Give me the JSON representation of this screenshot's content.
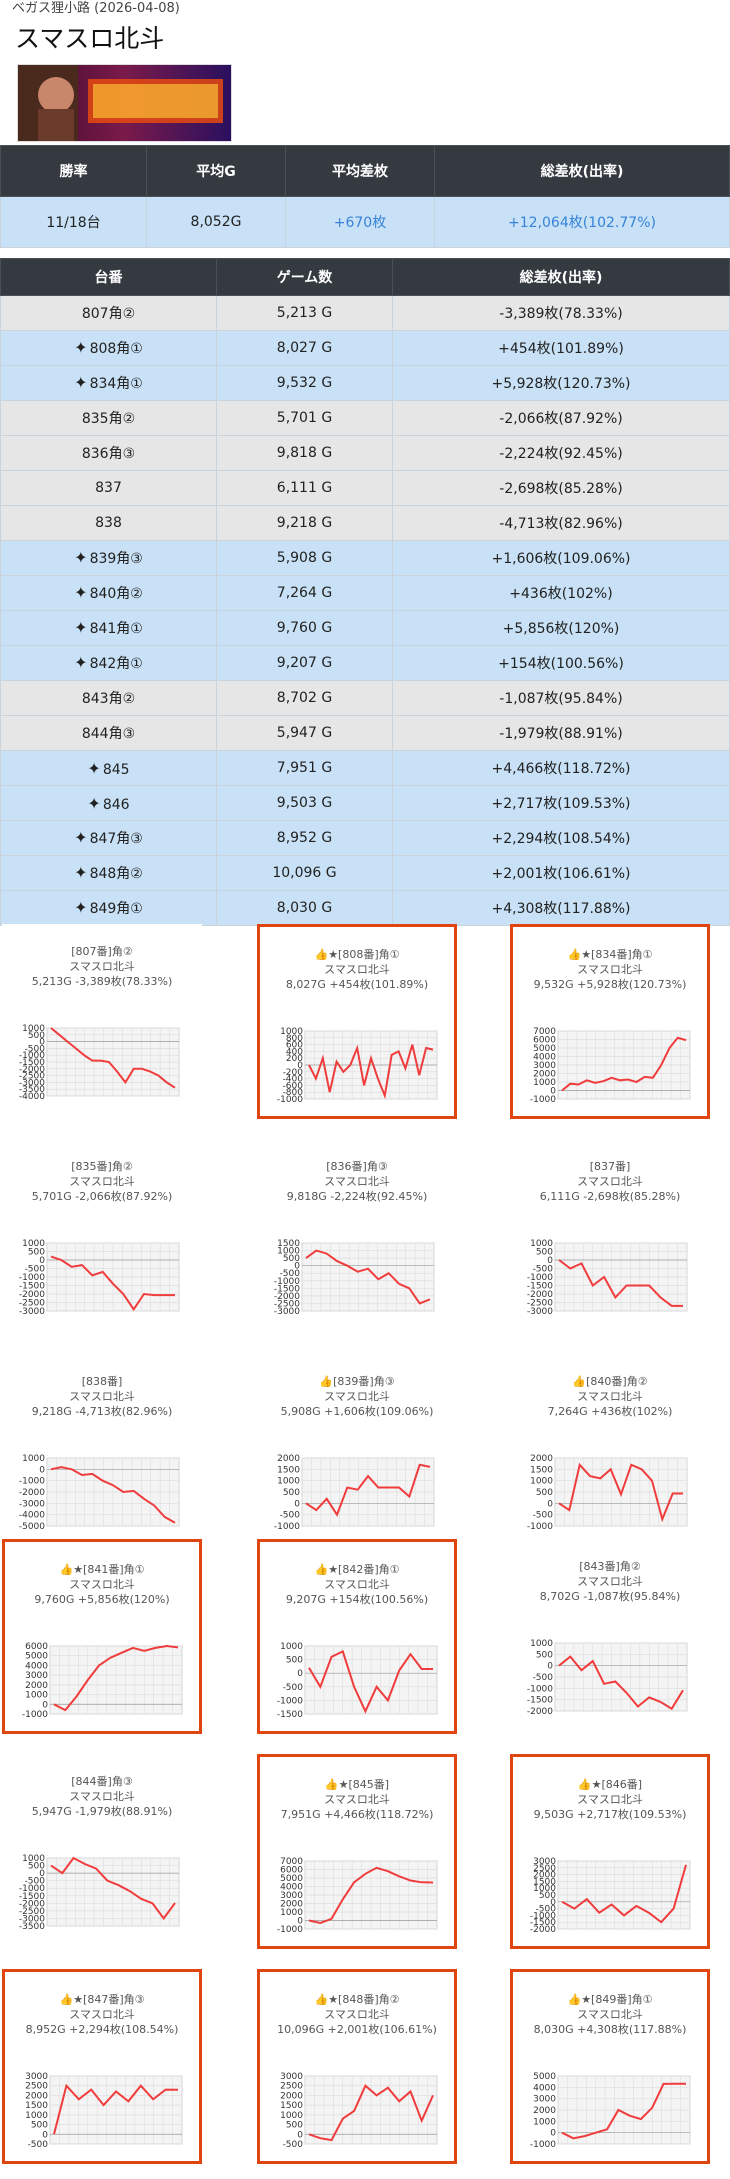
{
  "header": {
    "subtitle": "ベガス狸小路 (2026-04-08)",
    "title": "スマスロ北斗"
  },
  "summary": {
    "headers": [
      "勝率",
      "平均G",
      "平均差枚",
      "総差枚(出率)"
    ],
    "values": [
      "11/18台",
      "8,052G",
      "+670枚",
      "+12,064枚(102.77%)"
    ]
  },
  "detail": {
    "headers": [
      "台番",
      "ゲーム数",
      "総差枚(出率)"
    ],
    "rows": [
      {
        "machine": "807角②",
        "games": "5,213 G",
        "diff": "-3,389枚(78.33%)",
        "plus": false
      },
      {
        "machine": "808角①",
        "games": "8,027 G",
        "diff": "+454枚(101.89%)",
        "plus": true
      },
      {
        "machine": "834角①",
        "games": "9,532 G",
        "diff": "+5,928枚(120.73%)",
        "plus": true
      },
      {
        "machine": "835角②",
        "games": "5,701 G",
        "diff": "-2,066枚(87.92%)",
        "plus": false
      },
      {
        "machine": "836角③",
        "games": "9,818 G",
        "diff": "-2,224枚(92.45%)",
        "plus": false
      },
      {
        "machine": "837",
        "games": "6,111 G",
        "diff": "-2,698枚(85.28%)",
        "plus": false
      },
      {
        "machine": "838",
        "games": "9,218 G",
        "diff": "-4,713枚(82.96%)",
        "plus": false
      },
      {
        "machine": "839角③",
        "games": "5,908 G",
        "diff": "+1,606枚(109.06%)",
        "plus": true
      },
      {
        "machine": "840角②",
        "games": "7,264 G",
        "diff": "+436枚(102%)",
        "plus": true
      },
      {
        "machine": "841角①",
        "games": "9,760 G",
        "diff": "+5,856枚(120%)",
        "plus": true
      },
      {
        "machine": "842角①",
        "games": "9,207 G",
        "diff": "+154枚(100.56%)",
        "plus": true
      },
      {
        "machine": "843角②",
        "games": "8,702 G",
        "diff": "-1,087枚(95.84%)",
        "plus": false
      },
      {
        "machine": "844角③",
        "games": "5,947 G",
        "diff": "-1,979枚(88.91%)",
        "plus": false
      },
      {
        "machine": "845",
        "games": "7,951 G",
        "diff": "+4,466枚(118.72%)",
        "plus": true
      },
      {
        "machine": "846",
        "games": "9,503 G",
        "diff": "+2,717枚(109.53%)",
        "plus": true
      },
      {
        "machine": "847角③",
        "games": "8,952 G",
        "diff": "+2,294枚(108.54%)",
        "plus": true
      },
      {
        "machine": "848角②",
        "games": "10,096 G",
        "diff": "+2,001枚(106.61%)",
        "plus": true
      },
      {
        "machine": "849角①",
        "games": "8,030 G",
        "diff": "+4,308枚(117.88%)",
        "plus": true
      }
    ]
  },
  "colors": {
    "accent": "#e0450f",
    "line": "#f03c3c",
    "highlight": "#c8e1f6",
    "header": "#343a40"
  },
  "charts": [
    {
      "t1": "[807番]角②",
      "t2": "スマスロ北斗",
      "t3": "5,213G -3,389枚(78.33%)",
      "sel": false,
      "ticks": [
        "1000",
        "500",
        "0",
        "-500",
        "-1000",
        "-1500",
        "-2000",
        "-2500",
        "-3000",
        "-3500",
        "-4000"
      ],
      "y": [
        1000,
        500,
        0,
        -500,
        -1000,
        -1400,
        -1400,
        -1500,
        -2200,
        -3000,
        -2000,
        -2000,
        -2200,
        -2500,
        -3000,
        -3389
      ]
    },
    {
      "t1": "👍★[808番]角①",
      "t2": "スマスロ北斗",
      "t3": "8,027G +454枚(101.89%)",
      "sel": true,
      "ticks": [
        "1000",
        "800",
        "600",
        "400",
        "200",
        "0",
        "-200",
        "-400",
        "-600",
        "-800",
        "-1000"
      ],
      "y": [
        0,
        -400,
        200,
        -800,
        100,
        -200,
        0,
        500,
        -600,
        200,
        -400,
        -900,
        300,
        400,
        -100,
        600,
        -300,
        500,
        454
      ]
    },
    {
      "t1": "👍★[834番]角①",
      "t2": "スマスロ北斗",
      "t3": "9,532G +5,928枚(120.73%)",
      "sel": true,
      "ticks": [
        "7000",
        "6000",
        "5000",
        "4000",
        "3000",
        "2000",
        "1000",
        "0",
        "-1000"
      ],
      "y": [
        0,
        800,
        700,
        1200,
        900,
        1100,
        1500,
        1200,
        1300,
        1000,
        1600,
        1500,
        3000,
        5000,
        6200,
        5928
      ]
    },
    {
      "t1": "[835番]角②",
      "t2": "スマスロ北斗",
      "t3": "5,701G -2,066枚(87.92%)",
      "sel": false,
      "ticks": [
        "1000",
        "500",
        "0",
        "-500",
        "-1000",
        "-1500",
        "-2000",
        "-2500",
        "-3000"
      ],
      "y": [
        200,
        0,
        -400,
        -300,
        -900,
        -700,
        -1400,
        -2000,
        -2900,
        -2000,
        -2066,
        -2066,
        -2066
      ]
    },
    {
      "t1": "[836番]角③",
      "t2": "スマスロ北斗",
      "t3": "9,818G -2,224枚(92.45%)",
      "sel": false,
      "ticks": [
        "1500",
        "1000",
        "500",
        "0",
        "-500",
        "-1000",
        "-1500",
        "-2000",
        "-2500",
        "-3000"
      ],
      "y": [
        500,
        1000,
        800,
        300,
        0,
        -400,
        -200,
        -900,
        -500,
        -1200,
        -1500,
        -2500,
        -2224
      ]
    },
    {
      "t1": "[837番]",
      "t2": "スマスロ北斗",
      "t3": "6,111G -2,698枚(85.28%)",
      "sel": false,
      "ticks": [
        "1000",
        "500",
        "0",
        "-500",
        "-1000",
        "-1500",
        "-2000",
        "-2500",
        "-3000"
      ],
      "y": [
        0,
        -500,
        -200,
        -1500,
        -1000,
        -2200,
        -1500,
        -1500,
        -1500,
        -2200,
        -2700,
        -2698
      ]
    },
    {
      "t1": "[838番]",
      "t2": "スマスロ北斗",
      "t3": "9,218G -4,713枚(82.96%)",
      "sel": false,
      "ticks": [
        "1000",
        "0",
        "-1000",
        "-2000",
        "-3000",
        "-4000",
        "-5000"
      ],
      "y": [
        0,
        200,
        0,
        -500,
        -400,
        -1000,
        -1400,
        -2000,
        -1900,
        -2600,
        -3200,
        -4200,
        -4713
      ]
    },
    {
      "t1": "👍[839番]角③",
      "t2": "スマスロ北斗",
      "t3": "5,908G +1,606枚(109.06%)",
      "sel": false,
      "ticks": [
        "2000",
        "1500",
        "1000",
        "500",
        "0",
        "-500",
        "-1000"
      ],
      "y": [
        0,
        -300,
        200,
        -500,
        700,
        600,
        1200,
        700,
        700,
        700,
        300,
        1700,
        1606
      ]
    },
    {
      "t1": "👍[840番]角②",
      "t2": "スマスロ北斗",
      "t3": "7,264G +436枚(102%)",
      "sel": false,
      "ticks": [
        "2000",
        "1500",
        "1000",
        "500",
        "0",
        "-500",
        "-1000"
      ],
      "y": [
        0,
        -300,
        1700,
        1200,
        1100,
        1500,
        400,
        1700,
        1500,
        1000,
        -700,
        436,
        436
      ]
    },
    {
      "t1": "👍★[841番]角①",
      "t2": "スマスロ北斗",
      "t3": "9,760G +5,856枚(120%)",
      "sel": true,
      "ticks": [
        "6000",
        "5000",
        "4000",
        "3000",
        "2000",
        "1000",
        "0",
        "-1000"
      ],
      "y": [
        0,
        -600,
        800,
        2500,
        4000,
        4800,
        5300,
        5800,
        5500,
        5800,
        6000,
        5856
      ]
    },
    {
      "t1": "👍★[842番]角①",
      "t2": "スマスロ北斗",
      "t3": "9,207G +154枚(100.56%)",
      "sel": true,
      "ticks": [
        "1000",
        "500",
        "0",
        "-500",
        "-1000",
        "-1500"
      ],
      "y": [
        200,
        -500,
        600,
        800,
        -500,
        -1400,
        -500,
        -1000,
        100,
        700,
        154,
        154
      ]
    },
    {
      "t1": "[843番]角②",
      "t2": "スマスロ北斗",
      "t3": "8,702G -1,087枚(95.84%)",
      "sel": false,
      "ticks": [
        "1000",
        "500",
        "0",
        "-500",
        "-1000",
        "-1500",
        "-2000"
      ],
      "y": [
        0,
        400,
        -200,
        200,
        -800,
        -700,
        -1200,
        -1800,
        -1400,
        -1600,
        -1900,
        -1087
      ]
    },
    {
      "t1": "[844番]角③",
      "t2": "スマスロ北斗",
      "t3": "5,947G -1,979枚(88.91%)",
      "sel": false,
      "ticks": [
        "1000",
        "500",
        "0",
        "-500",
        "-1000",
        "-1500",
        "-2000",
        "-2500",
        "-3000",
        "-3500"
      ],
      "y": [
        500,
        0,
        1000,
        600,
        300,
        -500,
        -800,
        -1200,
        -1700,
        -2000,
        -3000,
        -1979
      ]
    },
    {
      "t1": "👍★[845番]",
      "t2": "スマスロ北斗",
      "t3": "7,951G +4,466枚(118.72%)",
      "sel": true,
      "ticks": [
        "7000",
        "6000",
        "5000",
        "4000",
        "3000",
        "2000",
        "1000",
        "0",
        "-1000"
      ],
      "y": [
        0,
        -300,
        200,
        2500,
        4500,
        5500,
        6200,
        5800,
        5200,
        4700,
        4500,
        4466
      ]
    },
    {
      "t1": "👍★[846番]",
      "t2": "スマスロ北斗",
      "t3": "9,503G +2,717枚(109.53%)",
      "sel": true,
      "ticks": [
        "3000",
        "2500",
        "2000",
        "1500",
        "1000",
        "500",
        "0",
        "-500",
        "-1000",
        "-1500",
        "-2000"
      ],
      "y": [
        0,
        -500,
        200,
        -800,
        -200,
        -1000,
        -300,
        -800,
        -1500,
        -500,
        2717
      ]
    },
    {
      "t1": "👍★[847番]角③",
      "t2": "スマスロ北斗",
      "t3": "8,952G +2,294枚(108.54%)",
      "sel": true,
      "ticks": [
        "3000",
        "2500",
        "2000",
        "1500",
        "1000",
        "500",
        "0",
        "-500"
      ],
      "y": [
        0,
        2500,
        1800,
        2300,
        1500,
        2200,
        1700,
        2500,
        1800,
        2300,
        2294
      ]
    },
    {
      "t1": "👍★[848番]角②",
      "t2": "スマスロ北斗",
      "t3": "10,096G +2,001枚(106.61%)",
      "sel": true,
      "ticks": [
        "3000",
        "2500",
        "2000",
        "1500",
        "1000",
        "500",
        "0",
        "-500"
      ],
      "y": [
        0,
        -200,
        -300,
        800,
        1200,
        2500,
        2000,
        2400,
        1700,
        2200,
        700,
        2001
      ]
    },
    {
      "t1": "👍★[849番]角①",
      "t2": "スマスロ北斗",
      "t3": "8,030G +4,308枚(117.88%)",
      "sel": true,
      "ticks": [
        "5000",
        "4000",
        "3000",
        "2000",
        "1000",
        "0",
        "-1000"
      ],
      "y": [
        0,
        -500,
        -300,
        0,
        300,
        2000,
        1500,
        1200,
        2200,
        4300,
        4308,
        4308
      ]
    }
  ]
}
